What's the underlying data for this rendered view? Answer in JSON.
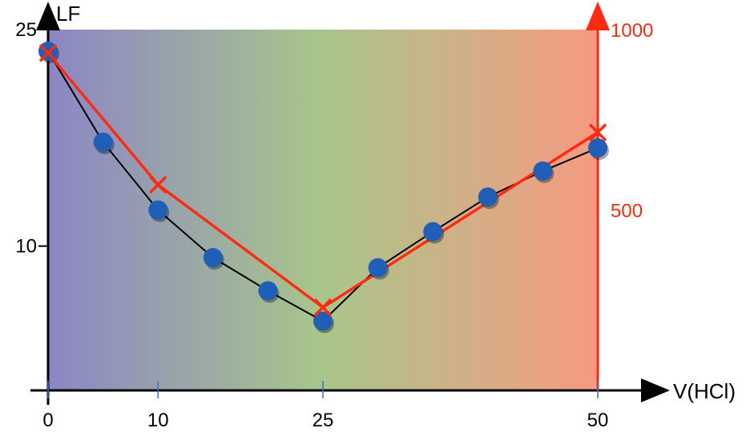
{
  "chart_data": {
    "type": "line",
    "xlabel": "V(HCl)",
    "ylabel": "LF",
    "x_ticks": [
      0,
      10,
      25,
      50
    ],
    "x_tick_labels": [
      "0",
      "10",
      "25",
      "50"
    ],
    "xlim": [
      0,
      56
    ],
    "y_left_ticks": [
      10,
      25
    ],
    "y_left_tick_labels": [
      "10",
      "25"
    ],
    "ylim_left": [
      0,
      25
    ],
    "y_right_ticks": [
      500,
      1000
    ],
    "y_right_tick_labels": [
      "500",
      "1000"
    ],
    "ylim_right": [
      0,
      1000
    ],
    "background_gradient": [
      "#8b86c6",
      "#a8c68a",
      "#f79a82"
    ],
    "series": [
      {
        "marker": "circle",
        "color": "#1f5fb8",
        "line_color": "#000000",
        "axis": "left",
        "x": [
          0,
          5,
          10,
          15,
          20,
          25,
          30,
          35,
          40,
          45,
          50
        ],
        "y": [
          23.5,
          17.2,
          12.5,
          9.2,
          6.9,
          4.8,
          8.5,
          11.0,
          13.4,
          15.2,
          16.8
        ]
      },
      {
        "marker": "x",
        "color": "#ff2a10",
        "axis": "right",
        "x": [
          0,
          10,
          25,
          50
        ],
        "y": [
          935,
          570,
          230,
          715
        ]
      }
    ],
    "colors": {
      "right_axis": "#ff2a10",
      "circle_series": "#1f5fb8",
      "x_series": "#ff2a10"
    }
  }
}
